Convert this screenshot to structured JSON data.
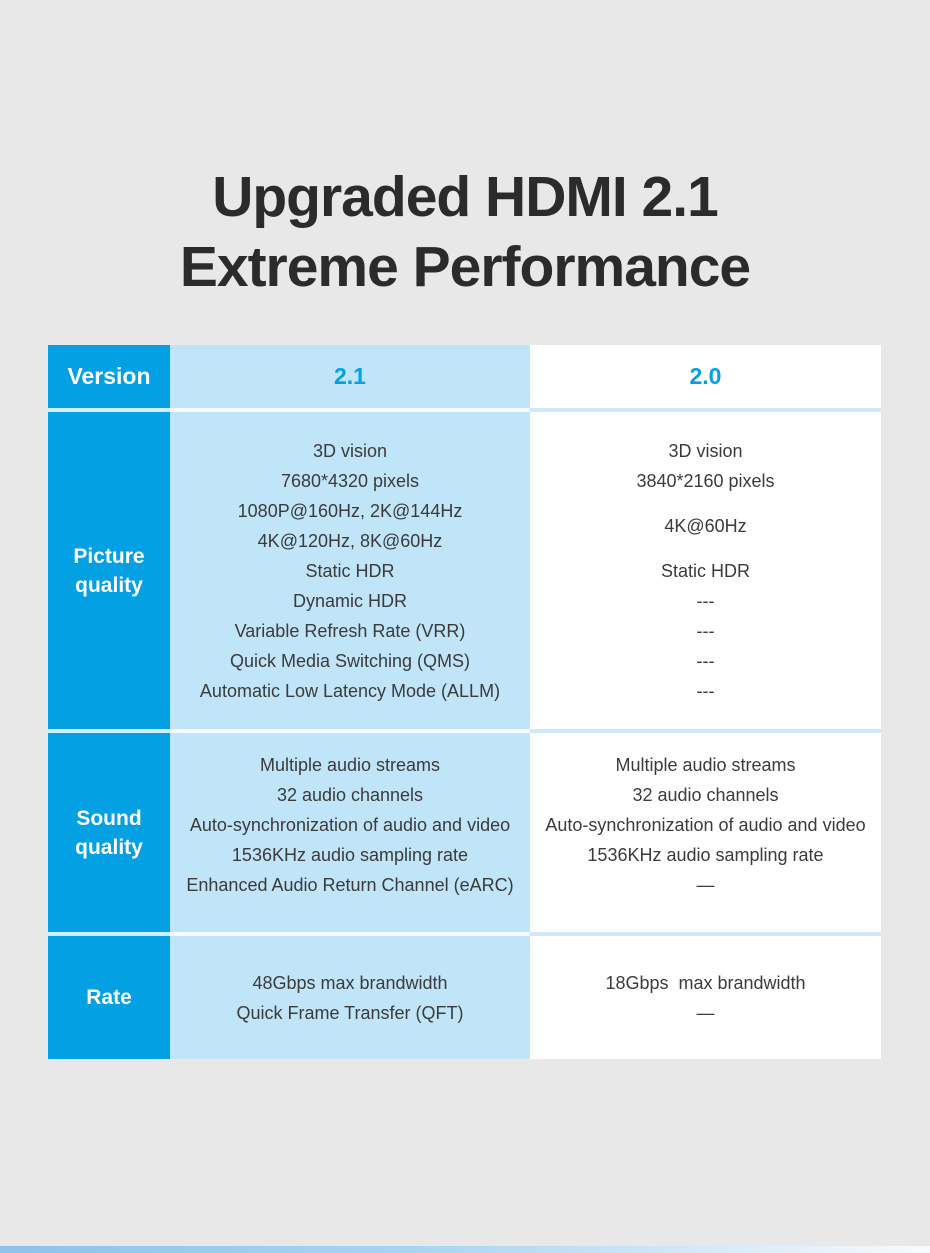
{
  "title": {
    "line1": "Upgraded HDMI 2.1",
    "line2": "Extreme Performance"
  },
  "colors": {
    "accent_blue": "#04a0e4",
    "light_blue": "#c0e4f8",
    "page_bg": "#e8e8e9",
    "title_text": "#2b2b2b",
    "cell_text": "#3b3b3b",
    "separator_on_white": "#cfe9f8",
    "bottom_bar_left": "#8dc3e9",
    "bottom_bar_right": "#f8fbfd"
  },
  "table": {
    "header": {
      "label": "Version",
      "col21": "2.1",
      "col20": "2.0"
    },
    "rows": [
      {
        "label": "Picture quality",
        "col21": [
          "3D vision",
          "7680*4320 pixels",
          "1080P@160Hz, 2K@144Hz",
          "4K@120Hz, 8K@60Hz",
          "Static HDR",
          "Dynamic HDR",
          "Variable Refresh Rate (VRR)",
          "Quick Media Switching (QMS)",
          "Automatic Low Latency Mode (ALLM)"
        ],
        "col20": [
          "3D vision",
          "3840*2160 pixels",
          "4K@60Hz",
          "Static HDR",
          "---",
          "---",
          "---",
          "---"
        ]
      },
      {
        "label": "Sound quality",
        "col21": [
          "Multiple audio streams",
          "32 audio channels",
          "Auto-synchronization of audio and video",
          "1536KHz audio sampling rate",
          "Enhanced Audio Return Channel (eARC)"
        ],
        "col20": [
          "Multiple audio streams",
          "32 audio channels",
          "Auto-synchronization of audio and video",
          "1536KHz audio sampling rate",
          "—"
        ]
      },
      {
        "label": "Rate",
        "col21": [
          "48Gbps max brandwidth",
          "Quick Frame Transfer (QFT)"
        ],
        "col20": [
          "18Gbps  max brandwidth",
          "—"
        ]
      }
    ]
  }
}
